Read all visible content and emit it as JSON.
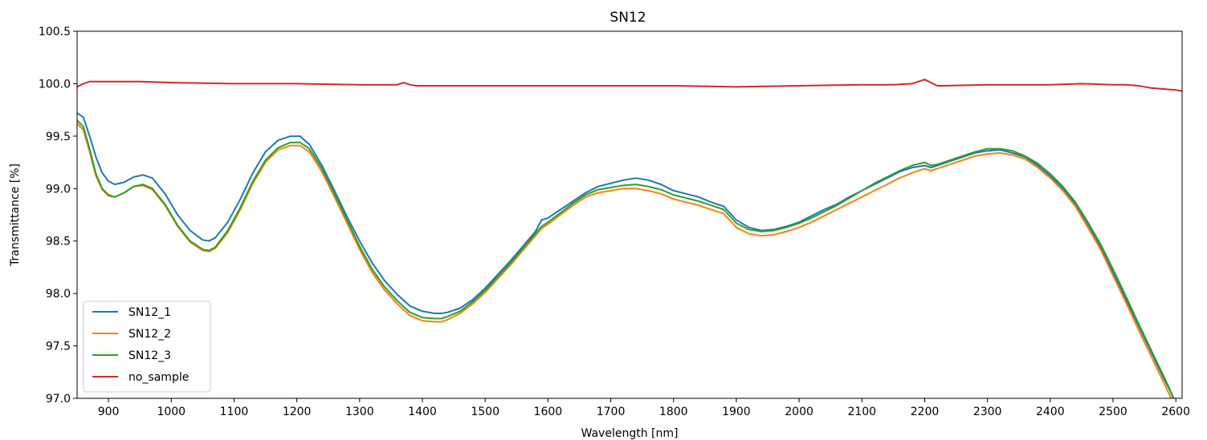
{
  "chart_data": {
    "type": "line",
    "title": "SN12",
    "xlabel": "Wavelength [nm]",
    "ylabel": "Transmittance [%]",
    "xlim": [
      850,
      2610
    ],
    "ylim": [
      97.0,
      100.5
    ],
    "xticks": [
      900,
      1000,
      1100,
      1200,
      1300,
      1400,
      1500,
      1600,
      1700,
      1800,
      1900,
      2000,
      2100,
      2200,
      2300,
      2400,
      2500,
      2600
    ],
    "yticks": [
      "97.0",
      "97.5",
      "98.0",
      "98.5",
      "99.0",
      "99.5",
      "100.0",
      "100.5"
    ],
    "grid": false,
    "legend": "lower-left",
    "series": [
      {
        "name": "SN12_1",
        "color": "#1f77b4",
        "x": [
          850,
          860,
          870,
          880,
          890,
          900,
          910,
          925,
          940,
          955,
          970,
          990,
          1010,
          1030,
          1050,
          1060,
          1070,
          1090,
          1110,
          1130,
          1150,
          1170,
          1190,
          1205,
          1220,
          1240,
          1260,
          1280,
          1300,
          1320,
          1340,
          1360,
          1380,
          1400,
          1420,
          1430,
          1440,
          1460,
          1480,
          1500,
          1520,
          1540,
          1560,
          1580,
          1590,
          1600,
          1620,
          1640,
          1660,
          1680,
          1700,
          1720,
          1740,
          1760,
          1780,
          1800,
          1820,
          1840,
          1860,
          1880,
          1900,
          1920,
          1940,
          1960,
          1980,
          2000,
          2020,
          2040,
          2060,
          2080,
          2100,
          2120,
          2140,
          2160,
          2180,
          2200,
          2210,
          2220,
          2240,
          2260,
          2280,
          2300,
          2320,
          2340,
          2360,
          2380,
          2400,
          2420,
          2440,
          2460,
          2480,
          2500,
          2520,
          2540,
          2560,
          2580,
          2590,
          2600
        ],
        "y": [
          99.72,
          99.68,
          99.5,
          99.3,
          99.15,
          99.07,
          99.04,
          99.06,
          99.11,
          99.13,
          99.1,
          98.95,
          98.75,
          98.6,
          98.51,
          98.5,
          98.53,
          98.68,
          98.9,
          99.15,
          99.35,
          99.46,
          99.5,
          99.5,
          99.42,
          99.22,
          98.98,
          98.73,
          98.5,
          98.29,
          98.12,
          97.99,
          97.88,
          97.83,
          97.81,
          97.81,
          97.82,
          97.86,
          97.94,
          98.05,
          98.18,
          98.31,
          98.45,
          98.59,
          98.7,
          98.72,
          98.8,
          98.88,
          98.96,
          99.02,
          99.05,
          99.08,
          99.1,
          99.08,
          99.04,
          98.98,
          98.95,
          98.92,
          98.87,
          98.83,
          98.7,
          98.63,
          98.6,
          98.61,
          98.64,
          98.68,
          98.74,
          98.8,
          98.85,
          98.92,
          98.98,
          99.04,
          99.1,
          99.16,
          99.2,
          99.22,
          99.2,
          99.22,
          99.26,
          99.3,
          99.34,
          99.36,
          99.37,
          99.34,
          99.3,
          99.22,
          99.12,
          99.0,
          98.85,
          98.65,
          98.45,
          98.2,
          97.95,
          97.7,
          97.45,
          97.2,
          97.08,
          96.95
        ]
      },
      {
        "name": "SN12_2",
        "color": "#ff7f0e",
        "x": [
          850,
          860,
          870,
          880,
          890,
          900,
          910,
          925,
          940,
          955,
          970,
          990,
          1010,
          1030,
          1050,
          1060,
          1070,
          1090,
          1110,
          1130,
          1150,
          1170,
          1190,
          1205,
          1220,
          1240,
          1260,
          1280,
          1300,
          1320,
          1340,
          1360,
          1380,
          1400,
          1420,
          1430,
          1440,
          1460,
          1480,
          1500,
          1520,
          1540,
          1560,
          1580,
          1590,
          1600,
          1620,
          1640,
          1660,
          1680,
          1700,
          1720,
          1740,
          1760,
          1780,
          1800,
          1820,
          1840,
          1860,
          1880,
          1900,
          1920,
          1940,
          1960,
          1980,
          2000,
          2020,
          2040,
          2060,
          2080,
          2100,
          2120,
          2140,
          2160,
          2180,
          2200,
          2210,
          2220,
          2240,
          2260,
          2280,
          2300,
          2320,
          2340,
          2360,
          2380,
          2400,
          2420,
          2440,
          2460,
          2480,
          2500,
          2520,
          2540,
          2560,
          2580,
          2590,
          2600
        ],
        "y": [
          99.62,
          99.56,
          99.35,
          99.12,
          98.99,
          98.93,
          98.92,
          98.96,
          99.02,
          99.03,
          98.99,
          98.84,
          98.64,
          98.49,
          98.41,
          98.4,
          98.43,
          98.58,
          98.8,
          99.05,
          99.25,
          99.37,
          99.41,
          99.41,
          99.35,
          99.16,
          98.92,
          98.67,
          98.42,
          98.2,
          98.03,
          97.9,
          97.79,
          97.74,
          97.73,
          97.73,
          97.75,
          97.81,
          97.9,
          98.01,
          98.14,
          98.27,
          98.41,
          98.55,
          98.62,
          98.66,
          98.75,
          98.84,
          98.92,
          98.96,
          98.98,
          99.0,
          99.0,
          98.98,
          98.95,
          98.9,
          98.87,
          98.84,
          98.8,
          98.76,
          98.63,
          98.57,
          98.55,
          98.56,
          98.59,
          98.63,
          98.68,
          98.74,
          98.8,
          98.86,
          98.92,
          98.98,
          99.04,
          99.1,
          99.15,
          99.19,
          99.17,
          99.19,
          99.23,
          99.27,
          99.31,
          99.33,
          99.34,
          99.32,
          99.28,
          99.2,
          99.1,
          98.98,
          98.83,
          98.63,
          98.42,
          98.17,
          97.92,
          97.66,
          97.41,
          97.16,
          97.03,
          96.9
        ]
      },
      {
        "name": "SN12_3",
        "color": "#2ca02c",
        "x": [
          850,
          860,
          870,
          880,
          890,
          900,
          910,
          925,
          940,
          955,
          970,
          990,
          1010,
          1030,
          1050,
          1060,
          1070,
          1090,
          1110,
          1130,
          1150,
          1170,
          1190,
          1205,
          1220,
          1240,
          1260,
          1280,
          1300,
          1320,
          1340,
          1360,
          1380,
          1400,
          1420,
          1430,
          1440,
          1460,
          1480,
          1500,
          1520,
          1540,
          1560,
          1580,
          1590,
          1600,
          1620,
          1640,
          1660,
          1680,
          1700,
          1720,
          1740,
          1760,
          1780,
          1800,
          1820,
          1840,
          1860,
          1880,
          1900,
          1920,
          1940,
          1960,
          1980,
          2000,
          2020,
          2040,
          2060,
          2080,
          2100,
          2120,
          2140,
          2160,
          2180,
          2200,
          2210,
          2220,
          2240,
          2260,
          2280,
          2300,
          2320,
          2340,
          2360,
          2380,
          2400,
          2420,
          2440,
          2460,
          2480,
          2500,
          2520,
          2540,
          2560,
          2580,
          2590,
          2600
        ],
        "y": [
          99.65,
          99.59,
          99.38,
          99.14,
          99.0,
          98.94,
          98.92,
          98.96,
          99.02,
          99.04,
          99.0,
          98.85,
          98.65,
          98.5,
          98.42,
          98.41,
          98.44,
          98.6,
          98.82,
          99.07,
          99.27,
          99.39,
          99.44,
          99.44,
          99.38,
          99.19,
          98.95,
          98.7,
          98.45,
          98.23,
          98.06,
          97.93,
          97.82,
          97.77,
          97.76,
          97.76,
          97.78,
          97.83,
          97.92,
          98.03,
          98.16,
          98.29,
          98.43,
          98.57,
          98.64,
          98.68,
          98.77,
          98.86,
          98.94,
          98.99,
          99.01,
          99.03,
          99.04,
          99.02,
          98.99,
          98.94,
          98.91,
          98.88,
          98.84,
          98.8,
          98.67,
          98.61,
          98.59,
          98.6,
          98.63,
          98.67,
          98.72,
          98.78,
          98.84,
          98.91,
          98.98,
          99.05,
          99.11,
          99.17,
          99.22,
          99.25,
          99.22,
          99.23,
          99.27,
          99.31,
          99.35,
          99.38,
          99.38,
          99.36,
          99.31,
          99.24,
          99.14,
          99.02,
          98.87,
          98.68,
          98.47,
          98.23,
          97.98,
          97.72,
          97.47,
          97.22,
          97.09,
          96.95
        ]
      },
      {
        "name": "no_sample",
        "color": "#d62728",
        "x": [
          850,
          860,
          870,
          900,
          950,
          1000,
          1100,
          1200,
          1300,
          1360,
          1370,
          1380,
          1390,
          1400,
          1500,
          1600,
          1700,
          1800,
          1900,
          2000,
          2100,
          2150,
          2180,
          2190,
          2200,
          2210,
          2220,
          2230,
          2300,
          2400,
          2450,
          2500,
          2520,
          2540,
          2560,
          2580,
          2600,
          2610
        ],
        "y": [
          99.97,
          100.0,
          100.02,
          100.02,
          100.02,
          100.01,
          100.0,
          100.0,
          99.99,
          99.99,
          100.01,
          99.99,
          99.98,
          99.98,
          99.98,
          99.98,
          99.98,
          99.98,
          99.97,
          99.98,
          99.99,
          99.99,
          100.0,
          100.02,
          100.04,
          100.01,
          99.98,
          99.98,
          99.99,
          99.99,
          100.0,
          99.99,
          99.99,
          99.98,
          99.96,
          99.95,
          99.94,
          99.93
        ]
      }
    ]
  }
}
